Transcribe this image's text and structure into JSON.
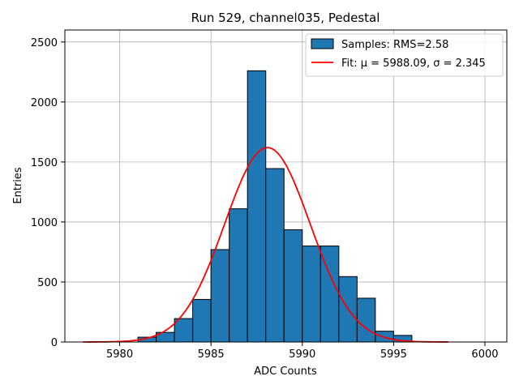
{
  "chart_data": {
    "type": "bar",
    "title": "Run 529, channel035, Pedestal",
    "xlabel": "ADC Counts",
    "ylabel": "Entries",
    "xlim": [
      5977,
      6001.2
    ],
    "ylim": [
      0,
      2600
    ],
    "xticks": [
      5980,
      5985,
      5990,
      5995,
      6000
    ],
    "yticks": [
      0,
      500,
      1000,
      1500,
      2000,
      2500
    ],
    "grid": true,
    "legend_position": "top-right",
    "bin_width": 1,
    "bins": [
      {
        "x": 5981,
        "value": 40
      },
      {
        "x": 5982,
        "value": 80
      },
      {
        "x": 5983,
        "value": 195
      },
      {
        "x": 5984,
        "value": 355
      },
      {
        "x": 5985,
        "value": 770
      },
      {
        "x": 5986,
        "value": 1110
      },
      {
        "x": 5987,
        "value": 2260
      },
      {
        "x": 5988,
        "value": 1445
      },
      {
        "x": 5989,
        "value": 935
      },
      {
        "x": 5990,
        "value": 800
      },
      {
        "x": 5991,
        "value": 800
      },
      {
        "x": 5992,
        "value": 545
      },
      {
        "x": 5993,
        "value": 365
      },
      {
        "x": 5994,
        "value": 90
      },
      {
        "x": 5995,
        "value": 55
      }
    ],
    "fit": {
      "type": "gaussian",
      "mu": 5988.09,
      "sigma": 2.345,
      "amplitude": 1620,
      "x_range": [
        5978,
        5998
      ]
    },
    "series": [
      {
        "name": "Samples: RMS=2.58",
        "color": "#1f77b4",
        "kind": "histogram"
      },
      {
        "name": "Fit: μ = 5988.09, σ = 2.345",
        "color": "#ff0000",
        "kind": "line"
      }
    ]
  }
}
